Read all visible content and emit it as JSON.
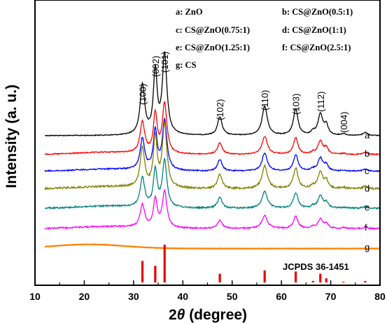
{
  "chart_data": {
    "type": "line",
    "xlabel_prefix": "2",
    "xlabel_theta": "θ",
    "xlabel_suffix": " (degree)",
    "ylabel": "Intensity  (a. u.)",
    "xlim": [
      10,
      80
    ],
    "xticks": [
      "10",
      "20",
      "30",
      "40",
      "50",
      "60",
      "70",
      "80"
    ],
    "legend": [
      {
        "text": "a: ZnO"
      },
      {
        "text": "b: CS@ZnO(0.5:1)"
      },
      {
        "text": "c: CS@ZnO(0.75:1)"
      },
      {
        "text": "d: CS@ZnO(1:1)"
      },
      {
        "text": "e: CS@ZnO(1.25:1)"
      },
      {
        "text": "f: CS@ZnO(2.5:1)"
      },
      {
        "text": "g: CS"
      }
    ],
    "peaks": [
      {
        "x": 31.8,
        "label": "(100)"
      },
      {
        "x": 34.4,
        "label": "(002)"
      },
      {
        "x": 36.3,
        "label": "(101)"
      },
      {
        "x": 47.5,
        "label": "(102)"
      },
      {
        "x": 56.6,
        "label": "(110)"
      },
      {
        "x": 62.9,
        "label": "(103)"
      },
      {
        "x": 67.9,
        "label": "(112)"
      },
      {
        "x": 72.6,
        "label": "(004)"
      }
    ],
    "series": [
      {
        "name": "a",
        "color": "#000000",
        "intensity_scale": 1.0,
        "noise": 0.6
      },
      {
        "name": "b",
        "color": "#ff0000",
        "intensity_scale": 0.62,
        "noise": 0.8
      },
      {
        "name": "c",
        "color": "#0000ff",
        "intensity_scale": 0.62,
        "noise": 0.9
      },
      {
        "name": "d",
        "color": "#808000",
        "intensity_scale": 0.78,
        "noise": 1.3
      },
      {
        "name": "e",
        "color": "#008080",
        "intensity_scale": 0.58,
        "noise": 1.1
      },
      {
        "name": "f",
        "color": "#ff00ff",
        "intensity_scale": 0.45,
        "noise": 1.0
      },
      {
        "name": "g",
        "color": "#ff8000",
        "intensity_scale": 0.0,
        "noise": 0.2
      }
    ],
    "reference": {
      "label": "JCPDS 36-1451",
      "color": "#e60000",
      "x": [
        31.8,
        34.4,
        36.3,
        47.5,
        56.6,
        62.9,
        66.4,
        67.9,
        69.1,
        72.6,
        77.0
      ],
      "relative_intensity": [
        57,
        44,
        100,
        23,
        32,
        29,
        4,
        23,
        11,
        2,
        4
      ]
    }
  }
}
